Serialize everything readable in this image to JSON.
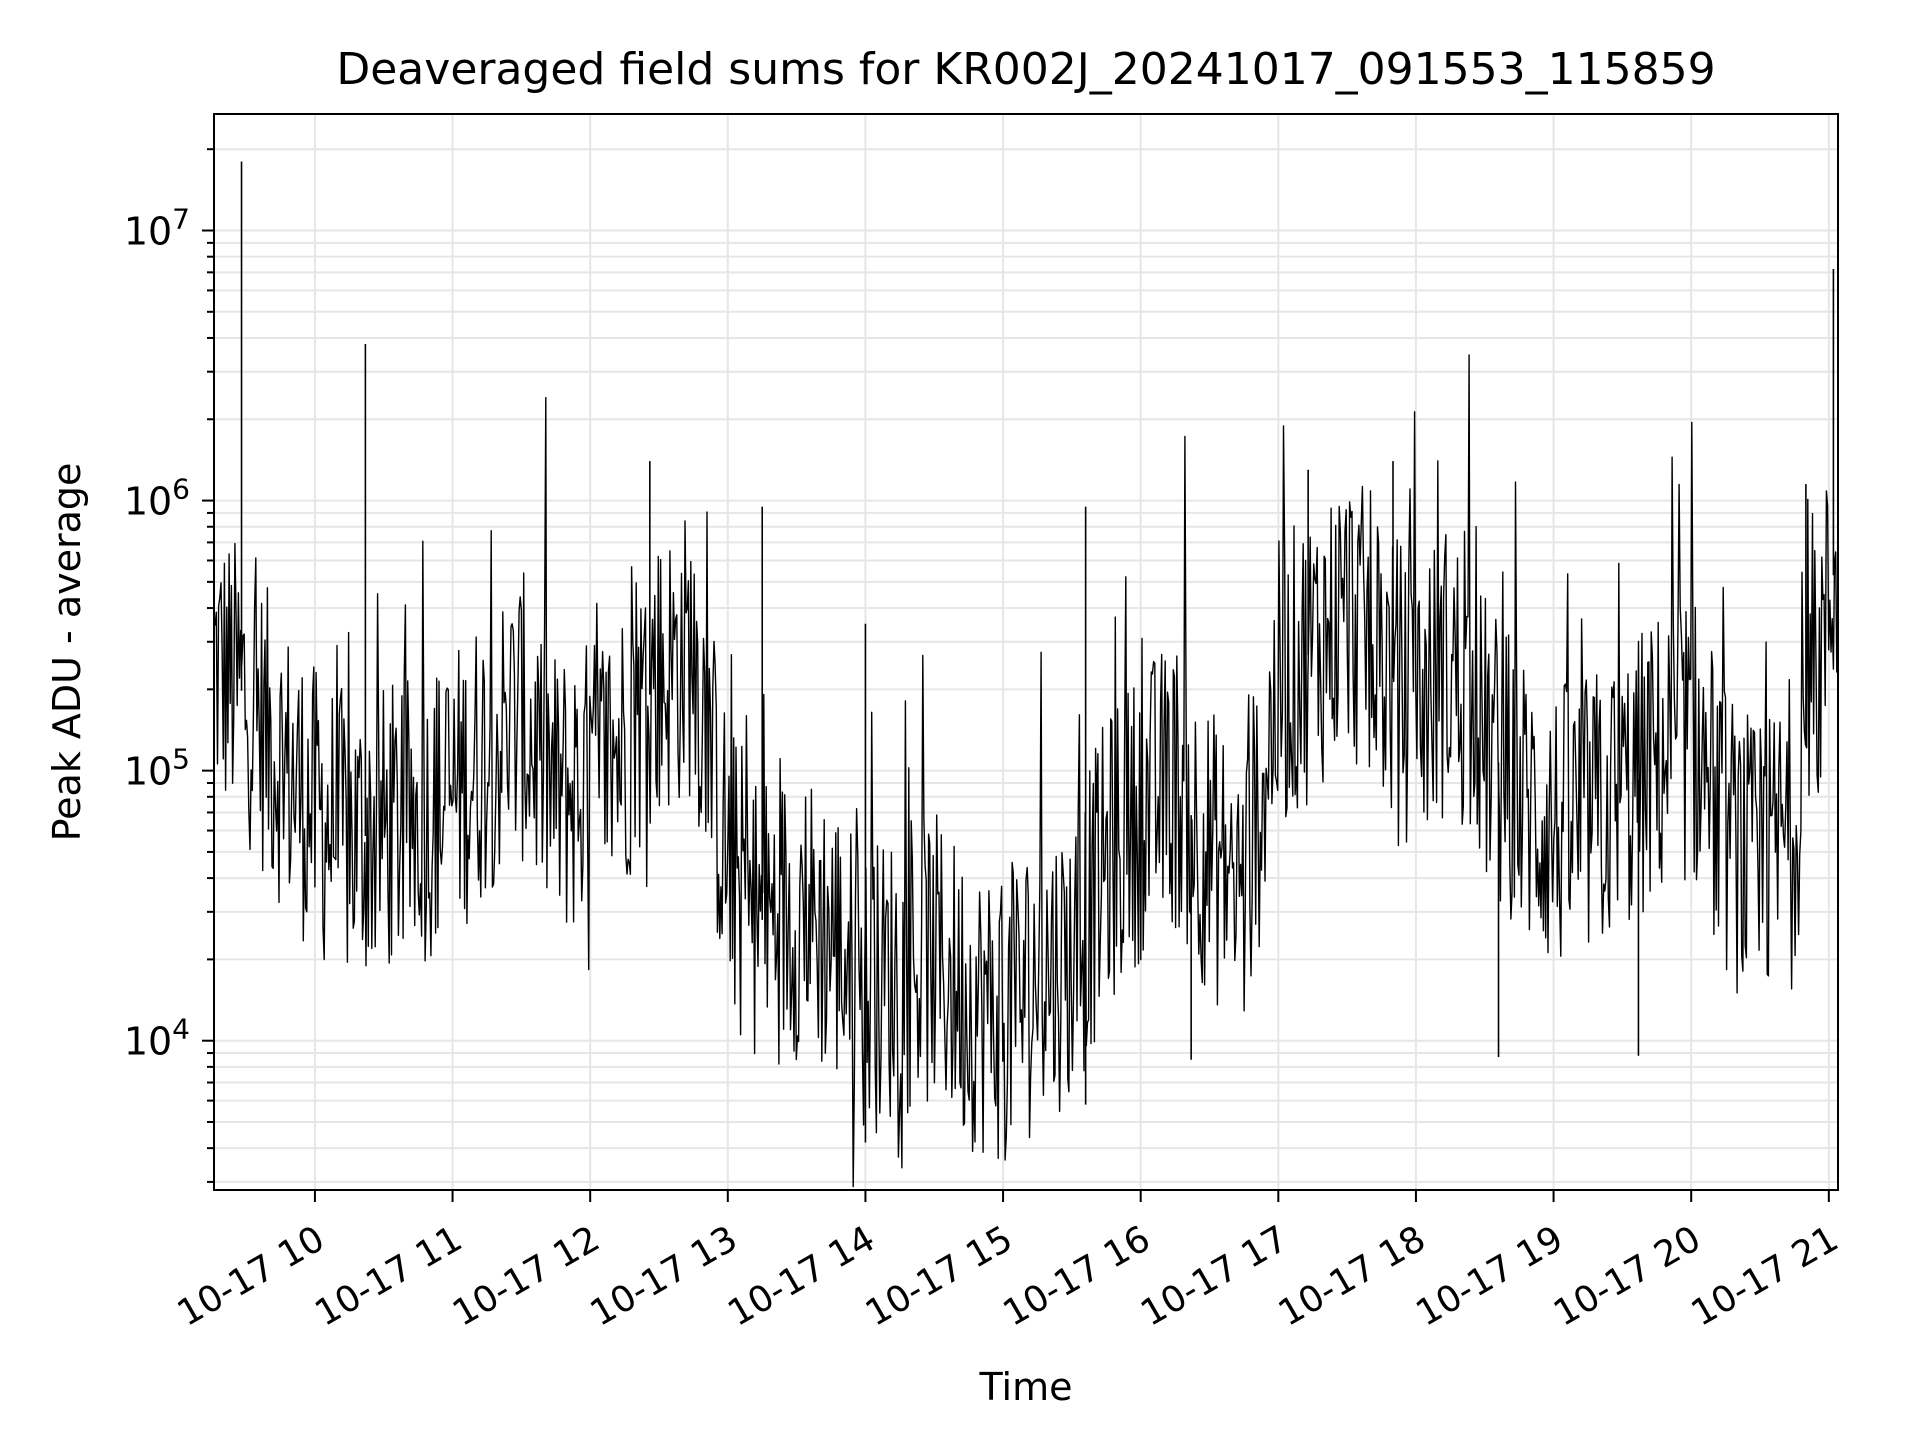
{
  "chart_data": {
    "type": "line",
    "title": "Deaveraged field sums for KR002J_20241017_091553_115859",
    "xlabel": "Time",
    "ylabel": "Peak ADU - average",
    "yscale": "log",
    "ylim": [
      2800,
      27000000
    ],
    "xlim": [
      "2024-10-17 09:16",
      "2024-10-17 21:04"
    ],
    "x_ticks": [
      "2024-10-17 10:00",
      "2024-10-17 11:00",
      "2024-10-17 12:00",
      "2024-10-17 13:00",
      "2024-10-17 14:00",
      "2024-10-17 15:00",
      "2024-10-17 16:00",
      "2024-10-17 17:00",
      "2024-10-17 18:00",
      "2024-10-17 19:00",
      "2024-10-17 20:00",
      "2024-10-17 21:00"
    ],
    "x_tick_labels": [
      "10-17 10",
      "10-17 11",
      "10-17 12",
      "10-17 13",
      "10-17 14",
      "10-17 15",
      "10-17 16",
      "10-17 17",
      "10-17 18",
      "10-17 19",
      "10-17 20",
      "10-17 21"
    ],
    "y_ticks": [
      10000,
      100000,
      1000000,
      10000000
    ],
    "y_tick_labels": [
      {
        "base": "10",
        "exp": "4"
      },
      {
        "base": "10",
        "exp": "5"
      },
      {
        "base": "10",
        "exp": "6"
      },
      {
        "base": "10",
        "exp": "7"
      }
    ],
    "grid": true,
    "grid_color": "#e6e6e6",
    "line_color": "#000000",
    "series": [
      {
        "x": [
          "2024-10-17 09:16",
          "2024-10-17 09:30",
          "2024-10-17 09:45",
          "2024-10-17 10:00",
          "2024-10-17 10:15",
          "2024-10-17 10:30",
          "2024-10-17 10:45",
          "2024-10-17 11:00",
          "2024-10-17 11:15",
          "2024-10-17 11:30",
          "2024-10-17 11:45",
          "2024-10-17 12:00",
          "2024-10-17 12:15",
          "2024-10-17 12:30",
          "2024-10-17 12:45",
          "2024-10-17 13:00",
          "2024-10-17 13:15",
          "2024-10-17 13:30",
          "2024-10-17 13:45",
          "2024-10-17 14:00",
          "2024-10-17 14:15",
          "2024-10-17 14:30",
          "2024-10-17 14:45",
          "2024-10-17 15:00",
          "2024-10-17 15:15",
          "2024-10-17 15:30",
          "2024-10-17 15:45",
          "2024-10-17 16:00",
          "2024-10-17 16:15",
          "2024-10-17 16:30",
          "2024-10-17 16:45",
          "2024-10-17 17:00",
          "2024-10-17 17:15",
          "2024-10-17 17:30",
          "2024-10-17 17:45",
          "2024-10-17 18:00",
          "2024-10-17 18:15",
          "2024-10-17 18:30",
          "2024-10-17 18:45",
          "2024-10-17 19:00",
          "2024-10-17 19:15",
          "2024-10-17 19:30",
          "2024-10-17 19:45",
          "2024-10-17 20:00",
          "2024-10-17 20:15",
          "2024-10-17 20:30",
          "2024-10-17 20:45",
          "2024-10-17 21:00",
          "2024-10-17 21:04"
        ],
        "y": [
          250000,
          190000,
          110000,
          70000,
          55000,
          60000,
          65000,
          80000,
          120000,
          160000,
          80000,
          90000,
          130000,
          220000,
          280000,
          45000,
          28000,
          30000,
          25000,
          15000,
          18000,
          20000,
          14000,
          12000,
          18000,
          20000,
          45000,
          70000,
          90000,
          50000,
          35000,
          200000,
          280000,
          400000,
          250000,
          170000,
          250000,
          130000,
          80000,
          60000,
          65000,
          80000,
          110000,
          140000,
          60000,
          40000,
          70000,
          400000,
          700000
        ],
        "spikes": [
          {
            "x": "2024-10-17 09:28",
            "y": 18000000
          },
          {
            "x": "2024-10-17 10:22",
            "y": 3800000
          },
          {
            "x": "2024-10-17 12:26",
            "y": 1400000
          },
          {
            "x": "2024-10-17 13:15",
            "y": 950000
          },
          {
            "x": "2024-10-17 14:00",
            "y": 350000
          },
          {
            "x": "2024-10-17 14:00",
            "y": 4200
          },
          {
            "x": "2024-10-17 15:36",
            "y": 950000
          },
          {
            "x": "2024-10-17 15:36",
            "y": 5800
          },
          {
            "x": "2024-10-17 16:22",
            "y": 8500
          },
          {
            "x": "2024-10-17 17:13",
            "y": 1300000
          },
          {
            "x": "2024-10-17 17:50",
            "y": 1400000
          },
          {
            "x": "2024-10-17 18:36",
            "y": 8700
          },
          {
            "x": "2024-10-17 19:37",
            "y": 8800
          },
          {
            "x": "2024-10-17 20:50",
            "y": 1150000
          },
          {
            "x": "2024-10-17 21:02",
            "y": 7200000
          }
        ]
      }
    ]
  }
}
